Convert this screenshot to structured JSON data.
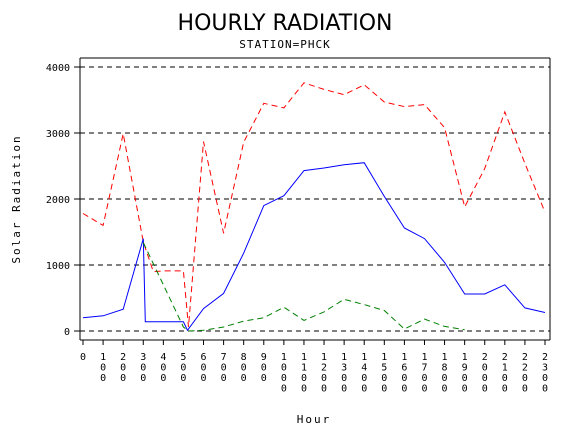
{
  "chart_data": {
    "type": "line",
    "title": "HOURLY RADIATION",
    "subtitle": "STATION=PHCK",
    "xlabel": "Hour",
    "ylabel": "Solar Radiation",
    "xlim": [
      0,
      2300
    ],
    "ylim": [
      0,
      4000
    ],
    "yticks": [
      0,
      1000,
      2000,
      3000,
      4000
    ],
    "yticklabels": [
      "0",
      "1000",
      "2000",
      "3000",
      "4000"
    ],
    "xticks": [
      0,
      100,
      200,
      300,
      400,
      500,
      600,
      700,
      800,
      900,
      1000,
      1100,
      1200,
      1300,
      1400,
      1500,
      1600,
      1700,
      1800,
      1900,
      2000,
      2100,
      2200,
      2300
    ],
    "xticklabels": [
      "0",
      "100",
      "200",
      "300",
      "400",
      "500",
      "600",
      "700",
      "800",
      "900",
      "1000",
      "1100",
      "1200",
      "1300",
      "1400",
      "1500",
      "1600",
      "1700",
      "1800",
      "1900",
      "2000",
      "2100",
      "2200",
      "2300"
    ],
    "grid": "horizontal dashed",
    "series": [
      {
        "color": "#ff0000",
        "style": "dashed",
        "x": [
          0,
          100,
          200,
          300,
          350,
          400,
          500,
          525,
          600,
          700,
          800,
          900,
          1000,
          1100,
          1200,
          1300,
          1400,
          1500,
          1600,
          1700,
          1800,
          1900,
          2000,
          2100,
          2200,
          2300
        ],
        "y": [
          1780,
          1600,
          2990,
          1350,
          900,
          910,
          910,
          60,
          2870,
          1480,
          2860,
          3450,
          3380,
          3760,
          3660,
          3580,
          3730,
          3470,
          3400,
          3430,
          3080,
          1880,
          2460,
          3320,
          2540,
          1800
        ]
      },
      {
        "color": "#0000ff",
        "style": "solid",
        "x": [
          0,
          100,
          200,
          300,
          310,
          400,
          500,
          520,
          600,
          700,
          800,
          900,
          1000,
          1100,
          1200,
          1300,
          1400,
          1500,
          1600,
          1700,
          1800,
          1900,
          2000,
          2100,
          2200,
          2300
        ],
        "y": [
          200,
          230,
          330,
          1400,
          140,
          140,
          140,
          10,
          340,
          570,
          1180,
          1900,
          2050,
          2430,
          2470,
          2520,
          2550,
          2040,
          1560,
          1400,
          1040,
          560,
          560,
          700,
          350,
          280
        ]
      },
      {
        "color": "#008000",
        "style": "dashed",
        "x": [
          300,
          500,
          525,
          600,
          700,
          800,
          900,
          1000,
          1100,
          1200,
          1300,
          1400,
          1500,
          1600,
          1700,
          1800,
          1900
        ],
        "y": [
          1340,
          60,
          0,
          10,
          60,
          150,
          200,
          360,
          160,
          290,
          480,
          400,
          310,
          30,
          180,
          70,
          20
        ]
      }
    ]
  }
}
